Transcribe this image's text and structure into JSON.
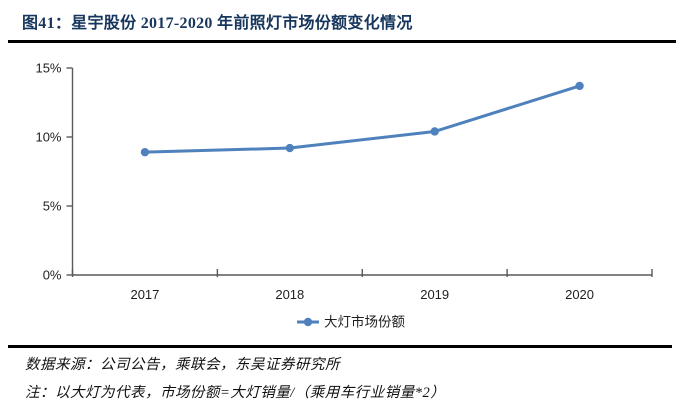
{
  "title": "图41：星宇股份 2017-2020 年前照灯市场份额变化情况",
  "colors": {
    "title_text": "#17365D",
    "series_line": "#4F81BD",
    "axis": "#595959",
    "tick_label": "#1f1f1f",
    "divider_rule": "#000000"
  },
  "chart_data": {
    "type": "line",
    "title": "星宇股份 2017-2020 年前照灯市场份额变化情况",
    "categories": [
      "2017",
      "2018",
      "2019",
      "2020"
    ],
    "series": [
      {
        "name": "大灯市场份额",
        "values": [
          8.9,
          9.2,
          10.4,
          13.7
        ],
        "color": "#4F81BD",
        "marker": "circle"
      }
    ],
    "xlabel": "",
    "ylabel": "",
    "ylim": [
      0,
      15
    ],
    "yticks": [
      {
        "value": 0,
        "label": "0%"
      },
      {
        "value": 5,
        "label": "5%"
      },
      {
        "value": 10,
        "label": "10%"
      },
      {
        "value": 15,
        "label": "15%"
      }
    ],
    "grid": false,
    "legend_position": "bottom"
  },
  "footer": {
    "source": "数据来源：公司公告，乘联会，东吴证券研究所",
    "note": "注：以大灯为代表，市场份额=大灯销量/（乘用车行业销量*2）"
  }
}
